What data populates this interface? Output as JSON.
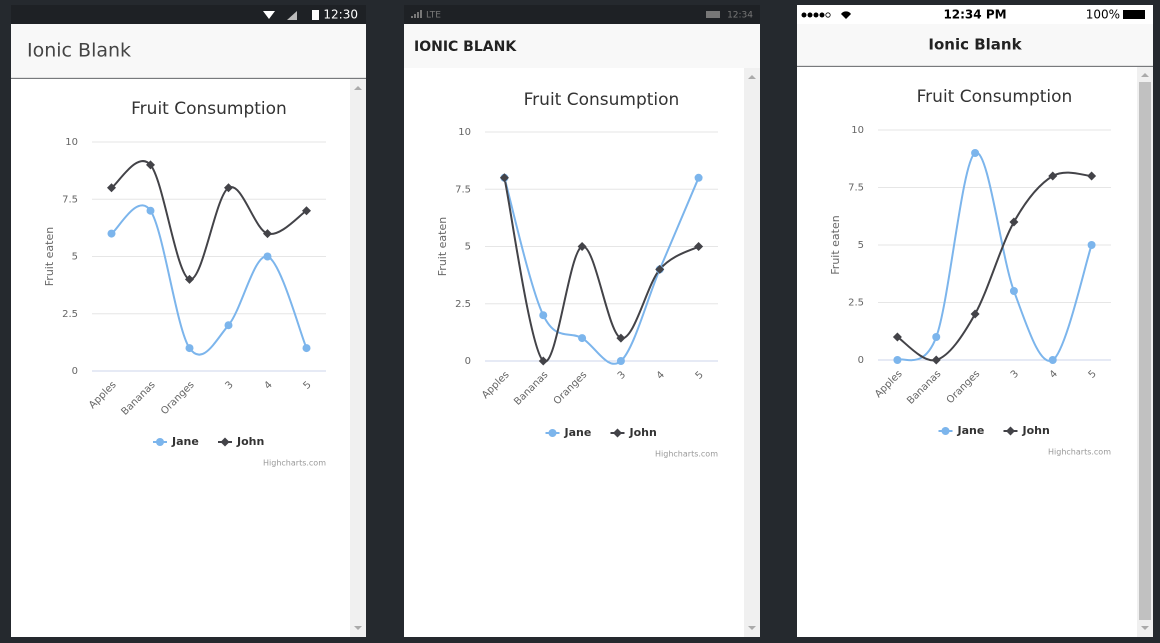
{
  "screens": [
    {
      "status_time": "12:30",
      "title": "Ionic Blank"
    },
    {
      "status_network": "LTE",
      "status_time": "12:34",
      "title": "IONIC BLANK"
    },
    {
      "status_time": "12:34 PM",
      "status_battery": "100%",
      "title": "Ionic Blank"
    }
  ],
  "chart_data": [
    {
      "type": "line",
      "title": "Fruit Consumption",
      "y_label": "Fruit eaten",
      "categories": [
        "Apples",
        "Bananas",
        "Oranges",
        "3",
        "4",
        "5"
      ],
      "series": [
        {
          "name": "Jane",
          "color": "#7cb5ec",
          "values": [
            6,
            7,
            1,
            2,
            5,
            1
          ]
        },
        {
          "name": "John",
          "color": "#434348",
          "values": [
            8,
            9,
            4,
            8,
            6,
            7
          ]
        }
      ],
      "ylim": [
        0,
        10
      ],
      "yticks": [
        0,
        2.5,
        5,
        7.5,
        10
      ],
      "grid": true,
      "smooth": true,
      "credit": "Highcharts.com"
    },
    {
      "type": "line",
      "title": "Fruit Consumption",
      "y_label": "Fruit eaten",
      "categories": [
        "Apples",
        "Bananas",
        "Oranges",
        "3",
        "4",
        "5"
      ],
      "series": [
        {
          "name": "Jane",
          "color": "#7cb5ec",
          "values": [
            8,
            2,
            1,
            0,
            4,
            8
          ]
        },
        {
          "name": "John",
          "color": "#434348",
          "values": [
            8,
            0,
            5,
            1,
            4,
            5
          ]
        }
      ],
      "ylim": [
        0,
        10
      ],
      "yticks": [
        0,
        2.5,
        5,
        7.5,
        10
      ],
      "grid": true,
      "smooth": true,
      "credit": "Highcharts.com"
    },
    {
      "type": "line",
      "title": "Fruit Consumption",
      "y_label": "Fruit eaten",
      "categories": [
        "Apples",
        "Bananas",
        "Oranges",
        "3",
        "4",
        "5"
      ],
      "series": [
        {
          "name": "Jane",
          "color": "#7cb5ec",
          "values": [
            0,
            1,
            9,
            3,
            0,
            5
          ]
        },
        {
          "name": "John",
          "color": "#434348",
          "values": [
            1,
            0,
            2,
            6,
            8,
            8
          ]
        }
      ],
      "ylim": [
        0,
        10
      ],
      "yticks": [
        0,
        2.5,
        5,
        7.5,
        10
      ],
      "grid": true,
      "smooth": true,
      "credit": "Highcharts.com"
    }
  ]
}
